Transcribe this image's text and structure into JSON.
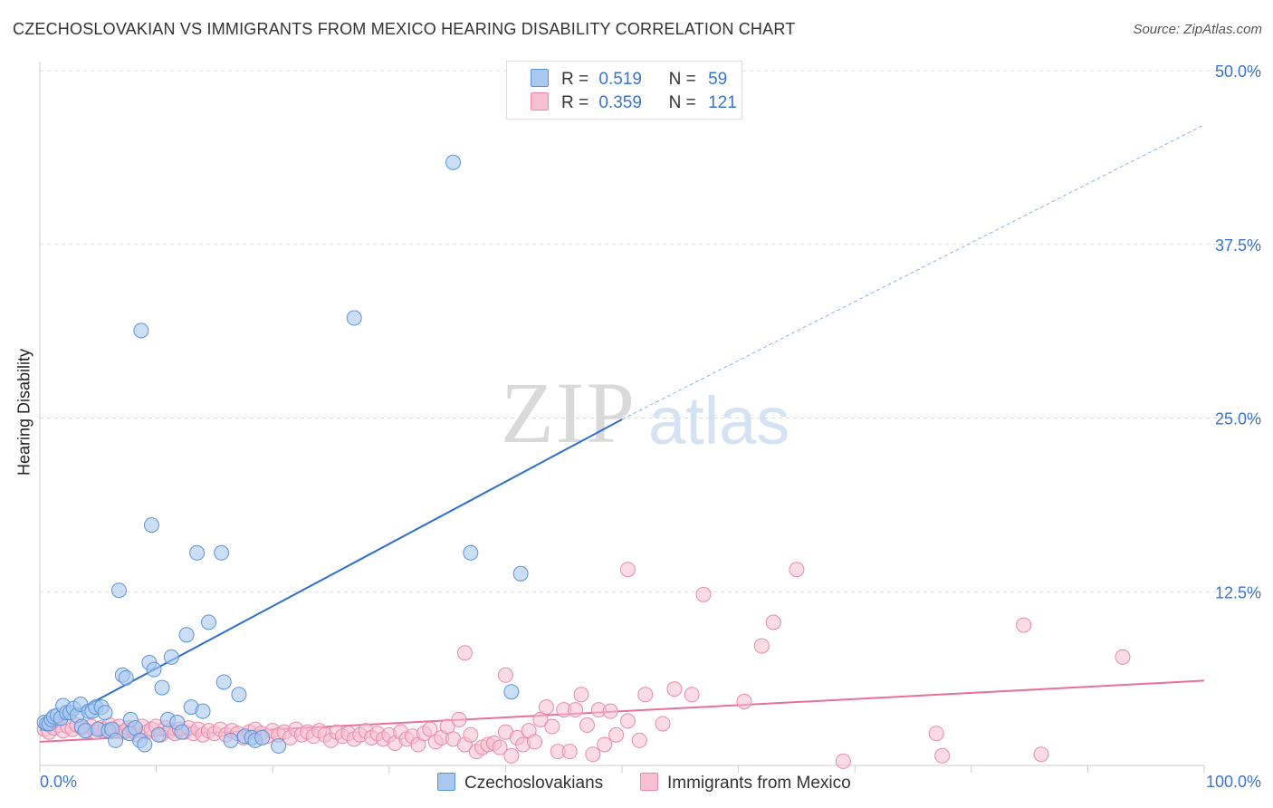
{
  "title": "CZECHOSLOVAKIAN VS IMMIGRANTS FROM MEXICO HEARING DISABILITY CORRELATION CHART",
  "source": "Source: ZipAtlas.com",
  "watermark": {
    "zip": "ZIP",
    "atlas": "atlas"
  },
  "legend": {
    "rows": [
      {
        "r_label": "R =",
        "r_value": "0.519",
        "n_label": "N =",
        "n_value": "59"
      },
      {
        "r_label": "R =",
        "r_value": "0.359",
        "n_label": "N =",
        "n_value": "121"
      }
    ]
  },
  "bottom_legend": {
    "czech": "Czechoslovakians",
    "mexico": "Immigrants from Mexico"
  },
  "colors": {
    "czech_fill": "#a9c8f0",
    "czech_stroke": "#5b93d8",
    "czech_line": "#2f6fcc",
    "mexico_fill": "#f7bfd0",
    "mexico_stroke": "#e98aab",
    "mexico_line": "#e8709a",
    "tick_label": "#3a74d0",
    "grid": "#dcdcdc"
  },
  "chart_data": {
    "type": "scatter",
    "ylabel": "Hearing Disability",
    "xlim": [
      0,
      100
    ],
    "ylim": [
      0,
      50
    ],
    "x_tick_labels": [
      "0.0%",
      "100.0%"
    ],
    "y_ticks": [
      12.5,
      25.0,
      37.5,
      50.0
    ],
    "y_tick_labels": [
      "12.5%",
      "25.0%",
      "37.5%",
      "50.0%"
    ],
    "grid": "horizontal dashed",
    "series": [
      {
        "name": "Czechoslovakians",
        "points": [
          [
            0.4,
            3.1
          ],
          [
            0.6,
            3.0
          ],
          [
            0.8,
            3.0
          ],
          [
            1.0,
            3.3
          ],
          [
            1.2,
            3.5
          ],
          [
            1.5,
            3.6
          ],
          [
            1.8,
            3.4
          ],
          [
            2.0,
            4.3
          ],
          [
            2.3,
            3.8
          ],
          [
            2.6,
            3.8
          ],
          [
            2.9,
            4.1
          ],
          [
            3.2,
            3.6
          ],
          [
            3.5,
            4.4
          ],
          [
            3.6,
            2.8
          ],
          [
            3.9,
            2.5
          ],
          [
            4.2,
            3.9
          ],
          [
            4.5,
            3.9
          ],
          [
            4.8,
            4.2
          ],
          [
            5.0,
            2.6
          ],
          [
            5.3,
            4.2
          ],
          [
            5.6,
            3.8
          ],
          [
            5.9,
            2.5
          ],
          [
            6.2,
            2.6
          ],
          [
            6.5,
            1.8
          ],
          [
            6.8,
            12.6
          ],
          [
            7.1,
            6.5
          ],
          [
            7.4,
            6.3
          ],
          [
            7.7,
            2.3
          ],
          [
            7.8,
            3.3
          ],
          [
            8.2,
            2.7
          ],
          [
            8.6,
            1.8
          ],
          [
            9.0,
            1.5
          ],
          [
            9.4,
            7.4
          ],
          [
            9.8,
            6.9
          ],
          [
            10.2,
            2.2
          ],
          [
            8.7,
            31.3
          ],
          [
            9.6,
            17.3
          ],
          [
            10.5,
            5.6
          ],
          [
            11.0,
            3.3
          ],
          [
            11.3,
            7.8
          ],
          [
            11.8,
            3.1
          ],
          [
            12.2,
            2.4
          ],
          [
            12.6,
            9.4
          ],
          [
            13.0,
            4.2
          ],
          [
            13.5,
            15.3
          ],
          [
            14.0,
            3.9
          ],
          [
            14.5,
            10.3
          ],
          [
            15.6,
            15.3
          ],
          [
            15.8,
            6.0
          ],
          [
            16.4,
            1.8
          ],
          [
            17.1,
            5.1
          ],
          [
            17.6,
            2.1
          ],
          [
            18.2,
            2.0
          ],
          [
            18.5,
            1.8
          ],
          [
            19.1,
            2.0
          ],
          [
            20.5,
            1.4
          ],
          [
            27.0,
            32.2
          ],
          [
            35.5,
            43.4
          ],
          [
            40.5,
            5.3
          ],
          [
            37.0,
            15.3
          ],
          [
            41.3,
            13.8
          ]
        ],
        "trend": {
          "x0": 0,
          "y0": 2.5,
          "x1": 50,
          "y1": 24.9,
          "x_dashed_end": 100,
          "y_dashed_end": 46.1
        }
      },
      {
        "name": "Immigrants from Mexico",
        "points": [
          [
            0.4,
            2.6
          ],
          [
            0.8,
            2.4
          ],
          [
            1.2,
            2.7
          ],
          [
            1.6,
            2.9
          ],
          [
            2.0,
            2.5
          ],
          [
            2.4,
            2.8
          ],
          [
            2.8,
            2.6
          ],
          [
            3.2,
            2.9
          ],
          [
            3.6,
            2.7
          ],
          [
            4.0,
            2.5
          ],
          [
            4.4,
            2.8
          ],
          [
            4.8,
            2.4
          ],
          [
            5.2,
            2.7
          ],
          [
            5.6,
            2.6
          ],
          [
            6.0,
            2.9
          ],
          [
            6.4,
            2.5
          ],
          [
            6.8,
            2.8
          ],
          [
            7.2,
            2.4
          ],
          [
            7.6,
            2.7
          ],
          [
            8.0,
            2.6
          ],
          [
            8.4,
            2.2
          ],
          [
            8.8,
            2.8
          ],
          [
            9.2,
            2.4
          ],
          [
            9.6,
            2.6
          ],
          [
            10.0,
            2.8
          ],
          [
            10.4,
            2.2
          ],
          [
            10.8,
            2.7
          ],
          [
            11.2,
            2.5
          ],
          [
            11.6,
            2.3
          ],
          [
            12.0,
            2.6
          ],
          [
            12.4,
            2.4
          ],
          [
            12.8,
            2.7
          ],
          [
            13.2,
            2.3
          ],
          [
            13.6,
            2.6
          ],
          [
            14.0,
            2.2
          ],
          [
            14.5,
            2.5
          ],
          [
            15.0,
            2.3
          ],
          [
            15.5,
            2.6
          ],
          [
            16.0,
            2.2
          ],
          [
            16.5,
            2.5
          ],
          [
            17.0,
            2.3
          ],
          [
            17.5,
            2.0
          ],
          [
            18.0,
            2.4
          ],
          [
            18.5,
            2.6
          ],
          [
            19.0,
            2.3
          ],
          [
            19.5,
            2.1
          ],
          [
            20.0,
            2.5
          ],
          [
            20.5,
            2.2
          ],
          [
            21.0,
            2.4
          ],
          [
            21.5,
            2.0
          ],
          [
            22.0,
            2.6
          ],
          [
            22.5,
            2.2
          ],
          [
            23.0,
            2.4
          ],
          [
            23.5,
            2.1
          ],
          [
            24.0,
            2.5
          ],
          [
            24.5,
            2.2
          ],
          [
            25.0,
            1.8
          ],
          [
            25.5,
            2.4
          ],
          [
            26.0,
            2.1
          ],
          [
            26.5,
            2.3
          ],
          [
            27.0,
            1.9
          ],
          [
            27.5,
            2.2
          ],
          [
            28.0,
            2.5
          ],
          [
            28.5,
            2.0
          ],
          [
            29.0,
            2.3
          ],
          [
            29.5,
            1.9
          ],
          [
            30.0,
            2.2
          ],
          [
            30.5,
            1.6
          ],
          [
            31.0,
            2.4
          ],
          [
            31.5,
            1.9
          ],
          [
            32.0,
            2.1
          ],
          [
            32.5,
            1.5
          ],
          [
            33.0,
            2.3
          ],
          [
            33.5,
            2.6
          ],
          [
            34.0,
            1.7
          ],
          [
            34.5,
            2.0
          ],
          [
            35.0,
            2.8
          ],
          [
            35.5,
            1.9
          ],
          [
            36.0,
            3.3
          ],
          [
            36.5,
            1.5
          ],
          [
            37.0,
            2.2
          ],
          [
            37.5,
            1.0
          ],
          [
            38.0,
            1.3
          ],
          [
            38.5,
            1.5
          ],
          [
            39.0,
            1.6
          ],
          [
            39.5,
            1.3
          ],
          [
            40.0,
            2.4
          ],
          [
            40.5,
            0.7
          ],
          [
            41.0,
            2.0
          ],
          [
            41.5,
            1.5
          ],
          [
            42.0,
            2.5
          ],
          [
            42.5,
            1.7
          ],
          [
            43.0,
            3.3
          ],
          [
            43.5,
            4.2
          ],
          [
            44.0,
            2.8
          ],
          [
            44.5,
            1.0
          ],
          [
            45.0,
            4.0
          ],
          [
            45.5,
            1.0
          ],
          [
            46.0,
            4.0
          ],
          [
            46.5,
            5.1
          ],
          [
            47.0,
            2.9
          ],
          [
            47.5,
            0.8
          ],
          [
            48.0,
            4.0
          ],
          [
            48.5,
            1.5
          ],
          [
            49.0,
            3.9
          ],
          [
            49.5,
            2.2
          ],
          [
            50.5,
            3.2
          ],
          [
            51.5,
            1.8
          ],
          [
            52.0,
            5.1
          ],
          [
            53.5,
            3.0
          ],
          [
            54.5,
            5.5
          ],
          [
            56.0,
            5.1
          ],
          [
            36.5,
            8.1
          ],
          [
            40.0,
            6.5
          ],
          [
            50.5,
            14.1
          ],
          [
            57.0,
            12.3
          ],
          [
            62.0,
            8.6
          ],
          [
            63.0,
            10.3
          ],
          [
            65.0,
            14.1
          ],
          [
            60.5,
            4.6
          ],
          [
            69.0,
            0.3
          ],
          [
            77.0,
            2.3
          ],
          [
            77.5,
            0.7
          ],
          [
            86.0,
            0.8
          ],
          [
            84.5,
            10.1
          ],
          [
            93.0,
            7.8
          ]
        ],
        "trend": {
          "x0": 0,
          "y0": 1.7,
          "x1": 100,
          "y1": 6.1
        }
      }
    ]
  }
}
